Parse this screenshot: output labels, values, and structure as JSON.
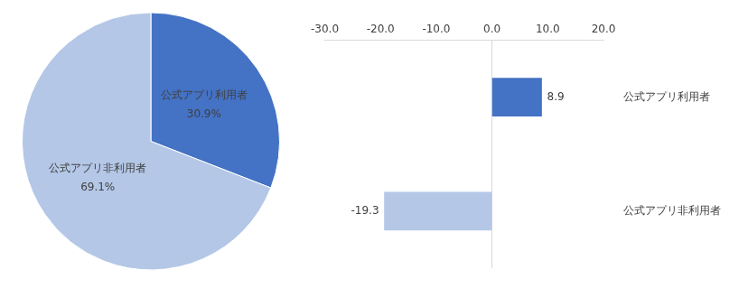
{
  "chart_data": [
    {
      "type": "pie",
      "categories": [
        "公式アプリ利用者",
        "公式アプリ非利用者"
      ],
      "values": [
        30.9,
        69.1
      ],
      "value_labels": [
        "30.9%",
        "69.1%"
      ],
      "colors": [
        "#4472c4",
        "#b4c7e7"
      ],
      "data_labels": true,
      "legend": "none"
    },
    {
      "type": "bar",
      "orientation": "horizontal",
      "categories": [
        "公式アプリ利用者",
        "公式アプリ非利用者"
      ],
      "values": [
        8.9,
        -19.3
      ],
      "colors": [
        "#4472c4",
        "#b4c7e7"
      ],
      "xlim": [
        -30,
        20
      ],
      "xticks": [
        {
          "value": -30,
          "label": "-30.0"
        },
        {
          "value": -20,
          "label": "-20.0"
        },
        {
          "value": -10,
          "label": "-10.0"
        },
        {
          "value": 0,
          "label": "0.0"
        },
        {
          "value": 10,
          "label": "10.0"
        },
        {
          "value": 20,
          "label": "20.0"
        }
      ],
      "grid": false,
      "data_labels": true,
      "legend": "none"
    }
  ]
}
